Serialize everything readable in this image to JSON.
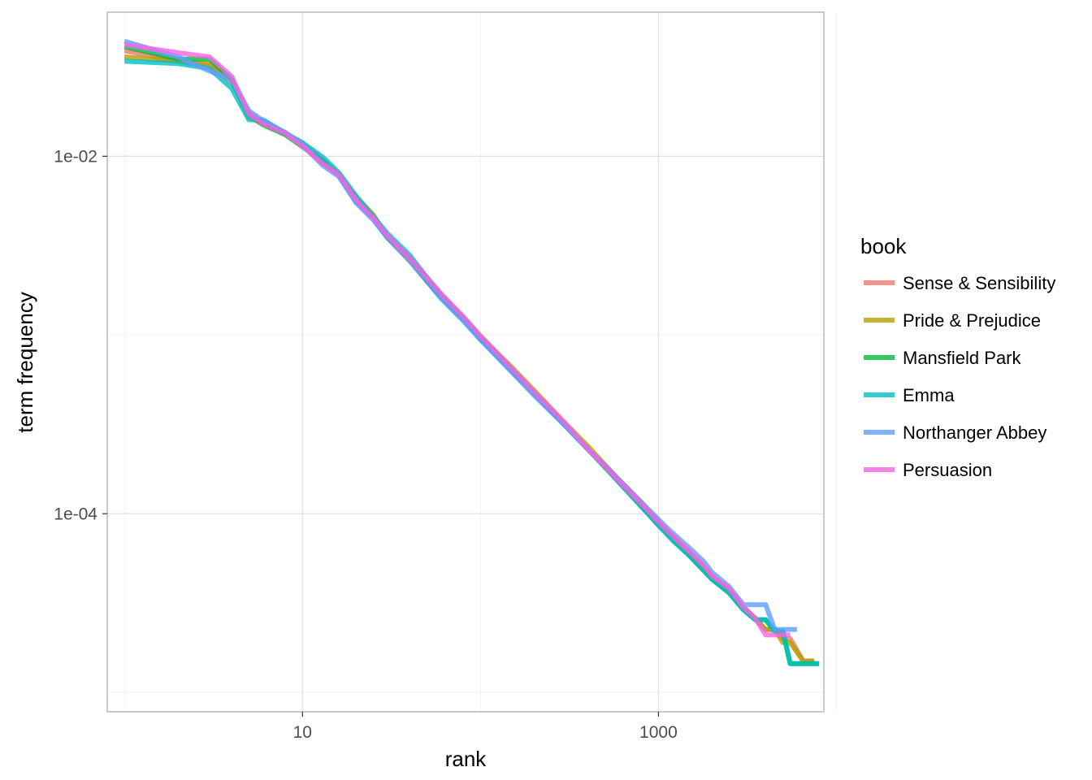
{
  "chart_data": {
    "type": "line",
    "xlabel": "rank",
    "ylabel": "term frequency",
    "x_scale": "log10",
    "y_scale": "log10",
    "xlim": [
      0.8,
      8500
    ],
    "ylim": [
      7.8e-06,
      0.064
    ],
    "x_ticks": [
      {
        "value": 10,
        "label": "10"
      },
      {
        "value": 1000,
        "label": "1000"
      }
    ],
    "x_minor_ticks": [
      1,
      100,
      10000
    ],
    "y_ticks": [
      {
        "value": 0.01,
        "label": "1e-02"
      },
      {
        "value": 0.0001,
        "label": "1e-04"
      }
    ],
    "y_minor_ticks": [
      0.001,
      1e-05
    ],
    "grid": true,
    "legend": {
      "title": "book",
      "position": "right"
    },
    "series": [
      {
        "name": "Sense & Sensibility",
        "color": "#F8766D",
        "points": [
          [
            1,
            0.039
          ],
          [
            2,
            0.034
          ],
          [
            3,
            0.032
          ],
          [
            4,
            0.026
          ],
          [
            5,
            0.0175
          ],
          [
            6,
            0.0155
          ],
          [
            8,
            0.0135
          ],
          [
            10,
            0.0118
          ],
          [
            13,
            0.0095
          ],
          [
            16,
            0.0078
          ],
          [
            20,
            0.0058
          ],
          [
            25,
            0.0046
          ],
          [
            30,
            0.0036
          ],
          [
            40,
            0.0027
          ],
          [
            50,
            0.0021
          ],
          [
            60,
            0.0017
          ],
          [
            80,
            0.00125
          ],
          [
            100,
            0.00098
          ],
          [
            150,
            0.00064
          ],
          [
            200,
            0.00047
          ],
          [
            300,
            0.00031
          ],
          [
            400,
            0.00023
          ],
          [
            500,
            0.000184
          ],
          [
            600,
            0.000151
          ],
          [
            800,
            0.000112
          ],
          [
            1000,
            8.8e-05
          ],
          [
            1200,
            7.4e-05
          ],
          [
            1500,
            5.9e-05
          ],
          [
            1800,
            4.9e-05
          ],
          [
            2000,
            4.4e-05
          ],
          [
            2500,
            3.7e-05
          ],
          [
            3000,
            3e-05
          ],
          [
            3500,
            2.6e-05
          ],
          [
            4000,
            2.25e-05
          ],
          [
            4500,
            2.25e-05
          ],
          [
            5000,
            2e-05
          ],
          [
            5500,
            2e-05
          ],
          [
            6500,
            1.5e-05
          ],
          [
            7500,
            1.5e-05
          ]
        ]
      },
      {
        "name": "Pride & Prejudice",
        "color": "#B79F00",
        "points": [
          [
            1,
            0.036
          ],
          [
            2,
            0.034
          ],
          [
            3,
            0.033
          ],
          [
            4,
            0.027
          ],
          [
            5,
            0.0165
          ],
          [
            6,
            0.0152
          ],
          [
            8,
            0.0133
          ],
          [
            10,
            0.0115
          ],
          [
            13,
            0.0092
          ],
          [
            16,
            0.008
          ],
          [
            20,
            0.0059
          ],
          [
            25,
            0.0047
          ],
          [
            30,
            0.0035
          ],
          [
            40,
            0.0026
          ],
          [
            50,
            0.002
          ],
          [
            60,
            0.00165
          ],
          [
            80,
            0.00125
          ],
          [
            100,
            0.00098
          ],
          [
            150,
            0.00066
          ],
          [
            200,
            0.00049
          ],
          [
            300,
            0.00032
          ],
          [
            400,
            0.00024
          ],
          [
            500,
            0.000188
          ],
          [
            600,
            0.000155
          ],
          [
            800,
            0.000116
          ],
          [
            1000,
            9e-05
          ],
          [
            1200,
            7.5e-05
          ],
          [
            1500,
            6e-05
          ],
          [
            1800,
            5e-05
          ],
          [
            2000,
            4.4e-05
          ],
          [
            2500,
            3.7e-05
          ],
          [
            3000,
            3e-05
          ],
          [
            3500,
            2.6e-05
          ],
          [
            4000,
            2.25e-05
          ],
          [
            4500,
            2.25e-05
          ],
          [
            5000,
            1.9e-05
          ],
          [
            5500,
            1.9e-05
          ],
          [
            6500,
            1.5e-05
          ],
          [
            7500,
            1.5e-05
          ]
        ]
      },
      {
        "name": "Mansfield Park",
        "color": "#00BA38",
        "points": [
          [
            1,
            0.041
          ],
          [
            2,
            0.035
          ],
          [
            3,
            0.035
          ],
          [
            4,
            0.027
          ],
          [
            5,
            0.017
          ],
          [
            6,
            0.015
          ],
          [
            8,
            0.0132
          ],
          [
            10,
            0.0113
          ],
          [
            13,
            0.0094
          ],
          [
            16,
            0.0079
          ],
          [
            20,
            0.0056
          ],
          [
            25,
            0.0045
          ],
          [
            30,
            0.0035
          ],
          [
            40,
            0.0027
          ],
          [
            50,
            0.002
          ],
          [
            60,
            0.00163
          ],
          [
            80,
            0.00122
          ],
          [
            100,
            0.00095
          ],
          [
            150,
            0.00063
          ],
          [
            200,
            0.00047
          ],
          [
            300,
            0.00031
          ],
          [
            400,
            0.00023
          ],
          [
            500,
            0.000182
          ],
          [
            600,
            0.00015
          ],
          [
            800,
            0.00011
          ],
          [
            1000,
            8.7e-05
          ],
          [
            1200,
            7.2e-05
          ],
          [
            1500,
            5.8e-05
          ],
          [
            1800,
            4.8e-05
          ],
          [
            2000,
            4.3e-05
          ],
          [
            2500,
            3.6e-05
          ],
          [
            3000,
            2.9e-05
          ],
          [
            3500,
            2.55e-05
          ],
          [
            4000,
            2.55e-05
          ],
          [
            4500,
            2.2e-05
          ],
          [
            5000,
            2.2e-05
          ],
          [
            5500,
            1.45e-05
          ],
          [
            7000,
            1.45e-05
          ],
          [
            8000,
            1.45e-05
          ]
        ]
      },
      {
        "name": "Emma",
        "color": "#00BFC4",
        "points": [
          [
            1,
            0.034
          ],
          [
            2,
            0.033
          ],
          [
            3,
            0.031
          ],
          [
            4,
            0.024
          ],
          [
            5,
            0.016
          ],
          [
            6,
            0.016
          ],
          [
            8,
            0.0135
          ],
          [
            10,
            0.0119
          ],
          [
            13,
            0.0099
          ],
          [
            16,
            0.0081
          ],
          [
            20,
            0.006
          ],
          [
            25,
            0.0046
          ],
          [
            30,
            0.0037
          ],
          [
            40,
            0.0028
          ],
          [
            50,
            0.0021
          ],
          [
            60,
            0.00165
          ],
          [
            80,
            0.00123
          ],
          [
            100,
            0.00096
          ],
          [
            150,
            0.00064
          ],
          [
            200,
            0.00047
          ],
          [
            300,
            0.00031
          ],
          [
            400,
            0.00023
          ],
          [
            500,
            0.000184
          ],
          [
            600,
            0.00015
          ],
          [
            800,
            0.00011
          ],
          [
            1000,
            8.6e-05
          ],
          [
            1200,
            7.1e-05
          ],
          [
            1500,
            5.8e-05
          ],
          [
            1800,
            4.8e-05
          ],
          [
            2000,
            4.3e-05
          ],
          [
            2500,
            3.6e-05
          ],
          [
            3000,
            2.9e-05
          ],
          [
            3500,
            2.55e-05
          ],
          [
            4000,
            2.55e-05
          ],
          [
            4500,
            2.2e-05
          ],
          [
            5000,
            2.2e-05
          ],
          [
            5500,
            1.45e-05
          ],
          [
            7000,
            1.45e-05
          ],
          [
            8000,
            1.45e-05
          ]
        ]
      },
      {
        "name": "Northanger Abbey",
        "color": "#619CFF",
        "points": [
          [
            1,
            0.044
          ],
          [
            2,
            0.036
          ],
          [
            3,
            0.03
          ],
          [
            4,
            0.027
          ],
          [
            5,
            0.018
          ],
          [
            6,
            0.0158
          ],
          [
            8,
            0.0136
          ],
          [
            10,
            0.0116
          ],
          [
            13,
            0.0089
          ],
          [
            16,
            0.0077
          ],
          [
            20,
            0.0055
          ],
          [
            25,
            0.0044
          ],
          [
            30,
            0.0035
          ],
          [
            40,
            0.0026
          ],
          [
            50,
            0.002
          ],
          [
            60,
            0.0016
          ],
          [
            80,
            0.0012
          ],
          [
            100,
            0.00094
          ],
          [
            150,
            0.00062
          ],
          [
            200,
            0.00046
          ],
          [
            300,
            0.00031
          ],
          [
            400,
            0.00023
          ],
          [
            500,
            0.000186
          ],
          [
            600,
            0.000155
          ],
          [
            800,
            0.000116
          ],
          [
            1000,
            9.3e-05
          ],
          [
            1200,
            7.8e-05
          ],
          [
            1500,
            6.4e-05
          ],
          [
            1800,
            5.4e-05
          ],
          [
            2000,
            4.7e-05
          ],
          [
            2500,
            3.9e-05
          ],
          [
            3000,
            3.1e-05
          ],
          [
            4000,
            3.1e-05
          ],
          [
            4500,
            2.25e-05
          ],
          [
            5500,
            2.25e-05
          ],
          [
            6000,
            2.25e-05
          ]
        ]
      },
      {
        "name": "Persuasion",
        "color": "#F564E3",
        "points": [
          [
            1,
            0.042
          ],
          [
            2,
            0.038
          ],
          [
            3,
            0.036
          ],
          [
            4,
            0.028
          ],
          [
            5,
            0.0172
          ],
          [
            6,
            0.0152
          ],
          [
            8,
            0.0134
          ],
          [
            10,
            0.0114
          ],
          [
            13,
            0.0091
          ],
          [
            16,
            0.0079
          ],
          [
            20,
            0.0057
          ],
          [
            25,
            0.0045
          ],
          [
            30,
            0.0036
          ],
          [
            40,
            0.0027
          ],
          [
            50,
            0.0021
          ],
          [
            60,
            0.0017
          ],
          [
            80,
            0.00127
          ],
          [
            100,
            0.00099
          ],
          [
            150,
            0.00065
          ],
          [
            200,
            0.00048
          ],
          [
            300,
            0.00032
          ],
          [
            400,
            0.00023
          ],
          [
            500,
            0.000185
          ],
          [
            600,
            0.000152
          ],
          [
            800,
            0.000114
          ],
          [
            1000,
            9e-05
          ],
          [
            1200,
            7.5e-05
          ],
          [
            1500,
            6.1e-05
          ],
          [
            1800,
            5.1e-05
          ],
          [
            2000,
            4.5e-05
          ],
          [
            2500,
            3.8e-05
          ],
          [
            3000,
            3e-05
          ],
          [
            3500,
            2.6e-05
          ],
          [
            4000,
            2.1e-05
          ],
          [
            5000,
            2.1e-05
          ],
          [
            5500,
            2.1e-05
          ]
        ]
      }
    ]
  }
}
